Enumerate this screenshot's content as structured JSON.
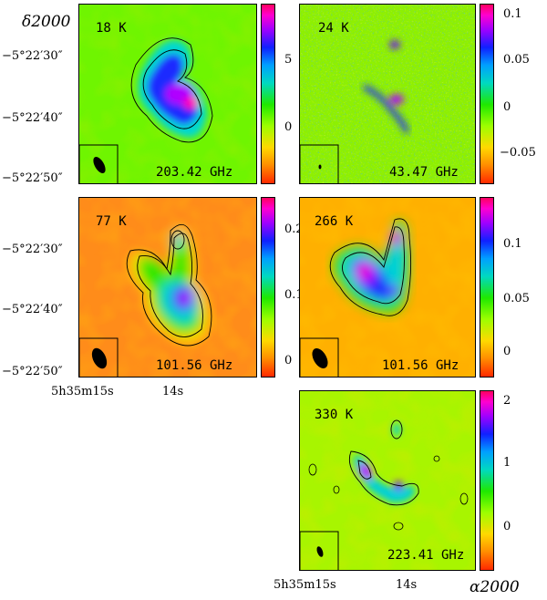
{
  "axes": {
    "dec_label": "δ2000",
    "ra_label": "α2000",
    "dec_ticks": [
      "−5°22′30″",
      "−5°22′40″",
      "−5°22′50″"
    ],
    "ra_ticks": [
      "5h35m15s",
      "14s"
    ]
  },
  "panels": [
    {
      "temperature": "18 K",
      "frequency": "203.42 GHz",
      "colorbar_ticks": [
        "5",
        "0"
      ]
    },
    {
      "temperature": "24 K",
      "frequency": "43.47 GHz",
      "colorbar_ticks": [
        "0.1",
        "0.05",
        "0",
        "−0.05"
      ]
    },
    {
      "temperature": "77 K",
      "frequency": "101.56 GHz",
      "colorbar_ticks": [
        "0.2",
        "0.1",
        "0"
      ]
    },
    {
      "temperature": "266 K",
      "frequency": "101.56 GHz",
      "colorbar_ticks": [
        "0.1",
        "0.05",
        "0"
      ]
    },
    {
      "temperature": "330 K",
      "frequency": "223.41 GHz",
      "colorbar_ticks": [
        "2",
        "1",
        "0"
      ]
    }
  ],
  "colors": {
    "colormap": [
      "#ff2a00",
      "#ff8c00",
      "#ffd900",
      "#9dff00",
      "#1fe800",
      "#00d9c0",
      "#00a0ff",
      "#1020ff",
      "#a000ff",
      "#ff00d0",
      "#ff0060"
    ]
  }
}
